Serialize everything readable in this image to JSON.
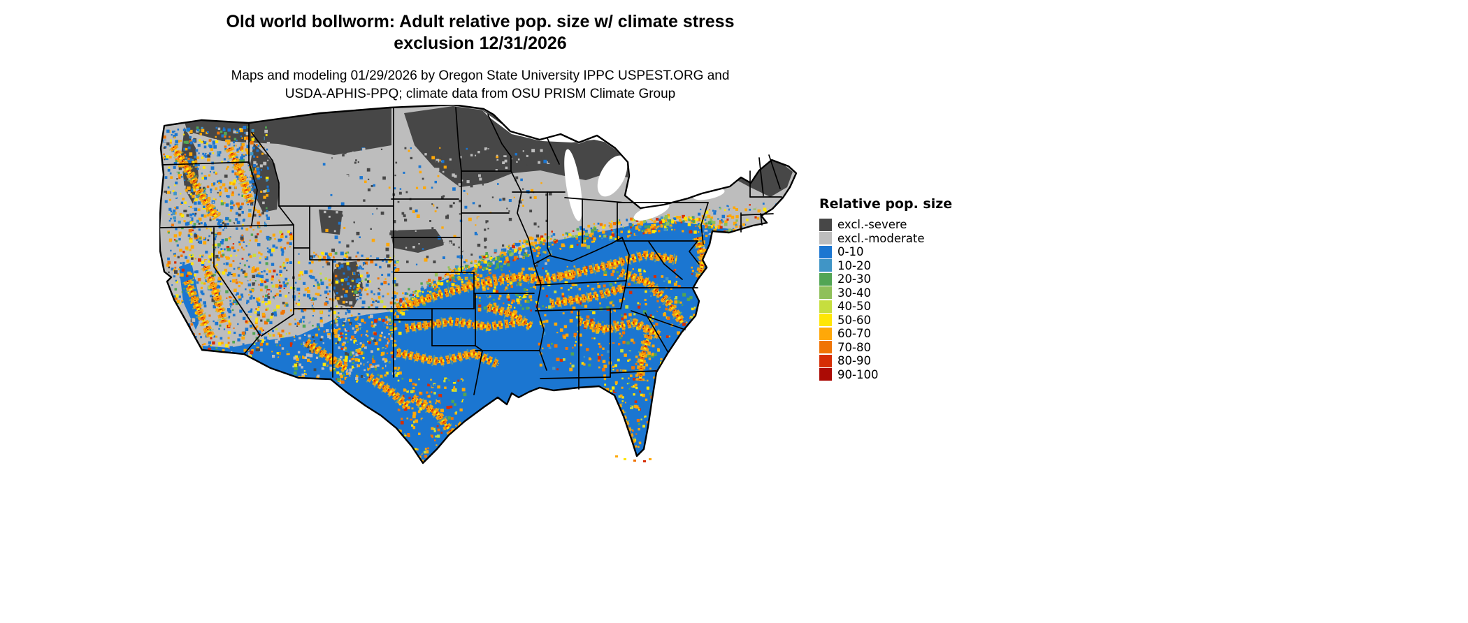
{
  "title": {
    "line1": "Old world bollworm: Adult relative pop. size w/ climate stress",
    "line2": "exclusion 12/31/2026"
  },
  "subtitle": {
    "line1": "Maps and modeling 01/29/2026 by Oregon State University IPPC USPEST.ORG and",
    "line2": "USDA-APHIS-PPQ; climate data from OSU PRISM Climate Group"
  },
  "map": {
    "type": "raster-risk-map",
    "region": "Contiguous United States"
  },
  "legend": {
    "title": "Relative pop. size",
    "items": [
      {
        "label": "excl.-severe",
        "color": "#474747"
      },
      {
        "label": "excl.-moderate",
        "color": "#bdbdbd"
      },
      {
        "label": "0-10",
        "color": "#1b76d1"
      },
      {
        "label": "10-20",
        "color": "#4095c6"
      },
      {
        "label": "20-30",
        "color": "#52a554"
      },
      {
        "label": "30-40",
        "color": "#8fc05a"
      },
      {
        "label": "40-50",
        "color": "#c6de3e"
      },
      {
        "label": "50-60",
        "color": "#ffe605"
      },
      {
        "label": "60-70",
        "color": "#ffa808"
      },
      {
        "label": "70-80",
        "color": "#f07405"
      },
      {
        "label": "80-90",
        "color": "#d62e05"
      },
      {
        "label": "90-100",
        "color": "#ab0b05"
      }
    ]
  }
}
